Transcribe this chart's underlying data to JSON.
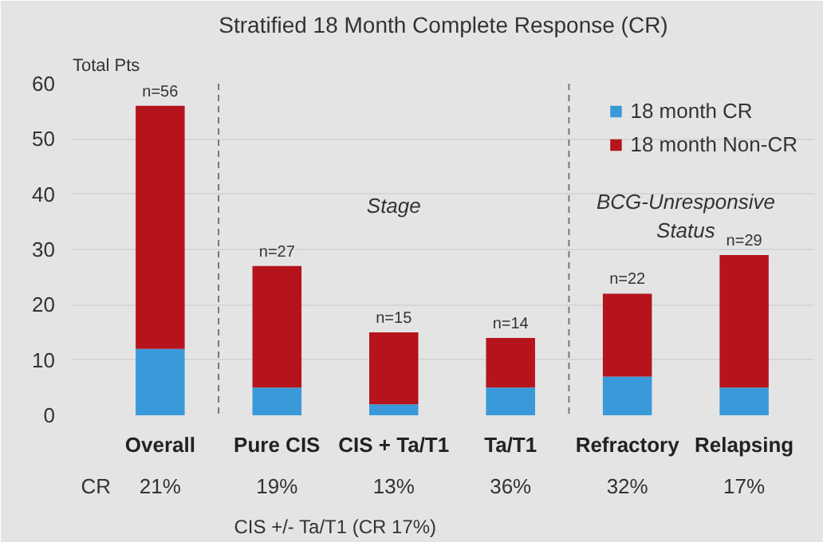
{
  "chart_data": {
    "type": "bar",
    "title": "Stratified 18 Month Complete Response (CR)",
    "ylabel": "Total Pts",
    "stacked": true,
    "categories": [
      "Overall",
      "Pure CIS",
      "CIS + Ta/T1",
      "Ta/T1",
      "Refractory",
      "Relapsing"
    ],
    "series": [
      {
        "name": "18 month CR",
        "color": "#3a9ad9",
        "values": [
          12,
          5,
          2,
          5,
          7,
          5
        ]
      },
      {
        "name": "18 month Non-CR",
        "color": "#b5141c",
        "values": [
          44,
          22,
          13,
          9,
          15,
          24
        ]
      }
    ],
    "totals": [
      "n=56",
      "n=27",
      "n=15",
      "n=14",
      "n=22",
      "n=29"
    ],
    "ylim": [
      0,
      60
    ],
    "yticks": [
      0,
      10,
      20,
      30,
      40,
      50,
      60
    ],
    "grid": "y",
    "legend": "top right",
    "annotations": [
      "Stage",
      "BCG-Unresponsive\nStatus",
      "CIS +/- Ta/T1 (CR 17%)",
      "CR",
      "21%",
      "19%",
      "13%",
      "36%",
      "32%",
      "17%"
    ]
  }
}
